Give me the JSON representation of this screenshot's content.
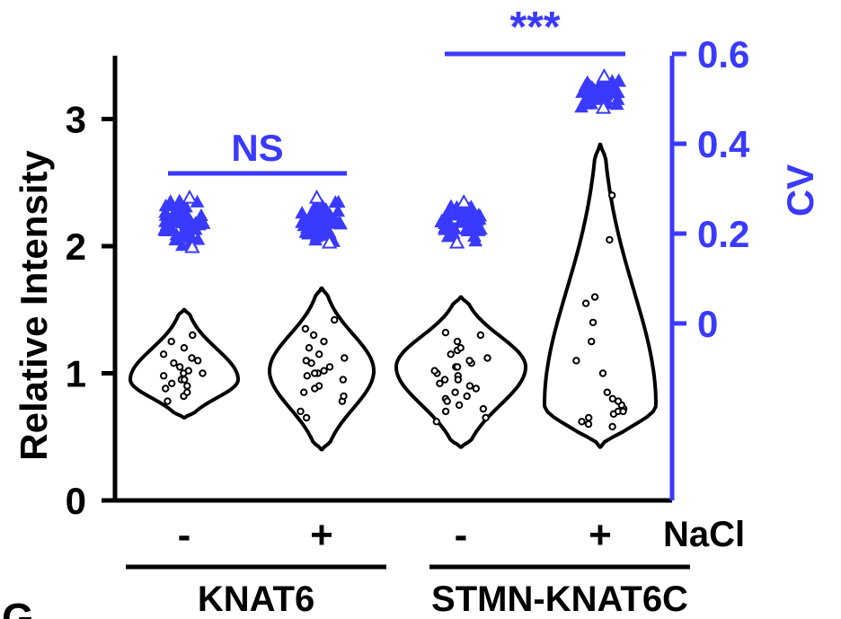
{
  "panel_letter": "G",
  "colors": {
    "black": "#000000",
    "blue": "#3a3aff"
  },
  "chart_data": {
    "type": "violin",
    "left_axis": {
      "label": "Relative Intensity",
      "ylim": [
        0,
        3.5
      ],
      "ticks": [
        "0",
        "1",
        "2",
        "3"
      ]
    },
    "right_axis": {
      "label": "CV",
      "ylim": [
        -0.2,
        0.6
      ],
      "ticks": [
        "0",
        "0.2",
        "0.4",
        "0.6"
      ]
    },
    "x_factor_label": "NaCl",
    "categories": [
      "-",
      "+",
      "-",
      "+"
    ],
    "groups": [
      {
        "label": "KNAT6",
        "members": [
          0,
          1
        ]
      },
      {
        "label": "STMN-KNAT6C",
        "members": [
          2,
          3
        ]
      }
    ],
    "intensity": [
      {
        "range": [
          0.65,
          1.5
        ],
        "mode": 0.95,
        "points": [
          0.82,
          0.85,
          0.88,
          0.92,
          0.95,
          0.95,
          0.98,
          1.0,
          1.02,
          1.05,
          1.08,
          1.1,
          1.12,
          1.15,
          1.2,
          1.25,
          1.3,
          0.78,
          0.9,
          1.0
        ]
      },
      {
        "range": [
          0.4,
          1.67
        ],
        "mode": 1.02,
        "points": [
          0.65,
          0.7,
          0.78,
          0.82,
          0.85,
          0.9,
          0.95,
          0.98,
          1.0,
          1.02,
          1.05,
          1.08,
          1.1,
          1.12,
          1.15,
          1.2,
          1.25,
          1.3,
          1.35,
          1.42,
          0.88,
          1.0
        ]
      },
      {
        "range": [
          0.42,
          1.6
        ],
        "mode": 1.05,
        "points": [
          0.62,
          0.65,
          0.7,
          0.72,
          0.75,
          0.8,
          0.82,
          0.85,
          0.88,
          0.9,
          0.92,
          0.95,
          0.98,
          1.0,
          1.02,
          1.05,
          1.08,
          1.1,
          1.12,
          1.15,
          1.18,
          1.2,
          1.25,
          1.3,
          0.95,
          1.05,
          0.78,
          1.32
        ]
      },
      {
        "range": [
          0.42,
          2.8
        ],
        "mode": 0.75,
        "points": [
          0.58,
          0.62,
          0.65,
          0.68,
          0.7,
          0.72,
          0.75,
          0.78,
          0.8,
          0.85,
          1.0,
          1.1,
          1.25,
          1.4,
          1.55,
          1.6,
          2.05,
          2.4,
          0.6,
          0.7
        ]
      }
    ],
    "cv": [
      {
        "range": [
          0.17,
          0.28
        ]
      },
      {
        "range": [
          0.18,
          0.28
        ]
      },
      {
        "range": [
          0.18,
          0.27
        ]
      },
      {
        "range": [
          0.48,
          0.55
        ]
      }
    ],
    "significance": [
      {
        "label": "NS",
        "pair": [
          0,
          1
        ]
      },
      {
        "label": "***",
        "pair": [
          2,
          3
        ]
      }
    ]
  }
}
